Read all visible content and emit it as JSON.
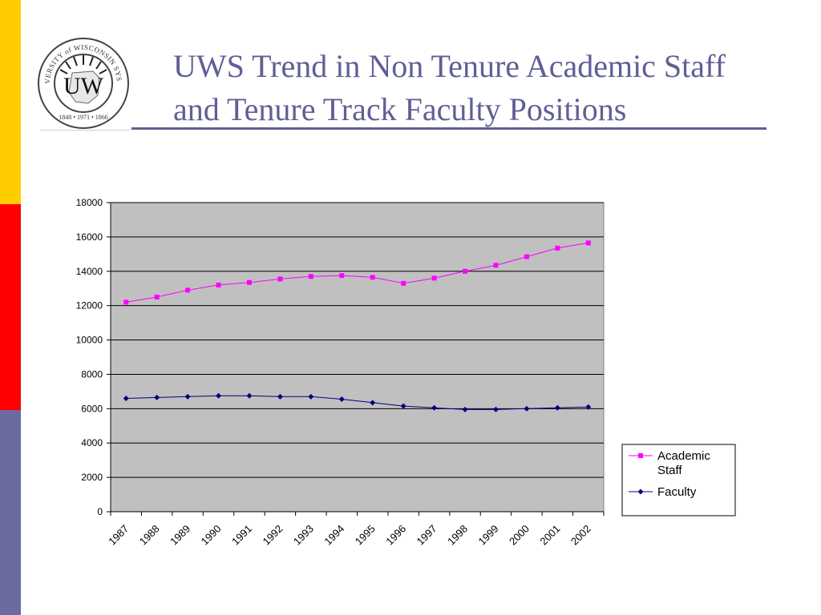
{
  "slide": {
    "title": "UWS Trend in Non Tenure Academic Staff and Tenure Track Faculty Positions",
    "logo": {
      "ring_text": "UNIVERSITY of WISCONSIN SYSTEM",
      "monogram": "UW",
      "years": "1848 • 1971 • 1866",
      "icon": "university-seal-icon"
    },
    "colors": {
      "accent": "#5f5f96",
      "bar_yellow": "#ffcc00",
      "bar_red": "#ff0000",
      "bar_slate": "#6b6b9f"
    }
  },
  "chart_data": {
    "type": "line",
    "title": "",
    "xlabel": "",
    "ylabel": "",
    "categories": [
      "1987",
      "1988",
      "1989",
      "1990",
      "1991",
      "1992",
      "1993",
      "1994",
      "1995",
      "1996",
      "1997",
      "1998",
      "1999",
      "2000",
      "2001",
      "2002"
    ],
    "ylim": [
      0,
      18000
    ],
    "yticks": [
      "0",
      "2000",
      "4000",
      "6000",
      "8000",
      "10000",
      "12000",
      "14000",
      "16000",
      "18000"
    ],
    "grid": true,
    "plot_background": "#c0c0c0",
    "legend_position": "right",
    "series": [
      {
        "name": "Academic Staff",
        "color": "#ff00ff",
        "marker": "square",
        "values": [
          12200,
          12500,
          12900,
          13200,
          13350,
          13550,
          13700,
          13750,
          13650,
          13300,
          13600,
          14000,
          14350,
          14850,
          15350,
          15650
        ]
      },
      {
        "name": "Faculty",
        "color": "#000080",
        "marker": "diamond",
        "values": [
          6600,
          6650,
          6700,
          6750,
          6750,
          6700,
          6700,
          6550,
          6350,
          6150,
          6050,
          5950,
          5950,
          6000,
          6050,
          6100
        ]
      }
    ]
  }
}
